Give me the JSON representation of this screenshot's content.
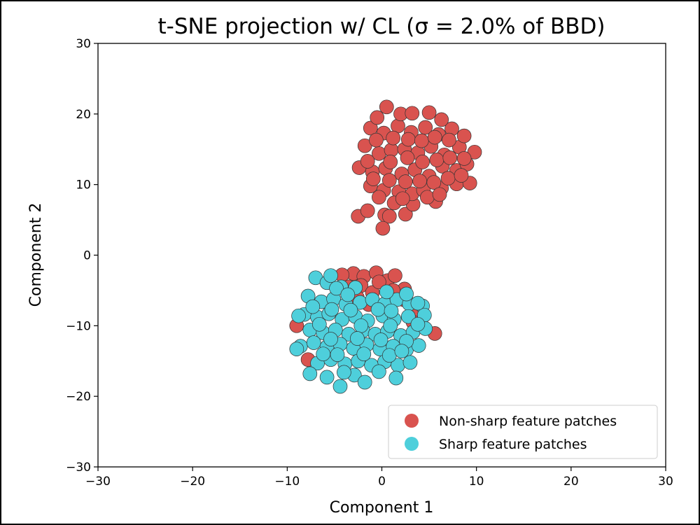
{
  "chart_data": {
    "type": "scatter",
    "title": "t-SNE projection w/ CL (σ = 2.0% of BBD)",
    "xlabel": "Component 1",
    "ylabel": "Component 2",
    "xlim": [
      -30,
      30
    ],
    "ylim": [
      -30,
      30
    ],
    "xticks": [
      -30,
      -20,
      -10,
      0,
      10,
      20,
      30
    ],
    "yticks": [
      -30,
      -20,
      -10,
      0,
      10,
      20,
      30
    ],
    "xtick_labels": [
      "−30",
      "−20",
      "−10",
      "0",
      "10",
      "20",
      "30"
    ],
    "ytick_labels": [
      "−30",
      "−20",
      "−10",
      "0",
      "10",
      "20",
      "30"
    ],
    "grid": false,
    "legend_position": "lower-right",
    "series": [
      {
        "name": "Non-sharp feature patches",
        "color": "#d9534f",
        "points": [
          [
            -2.5,
            5.5
          ],
          [
            -1.5,
            6.3
          ],
          [
            0.3,
            5.7
          ],
          [
            0.8,
            5.5
          ],
          [
            0.1,
            3.8
          ],
          [
            2.5,
            5.8
          ],
          [
            3.3,
            7.2
          ],
          [
            5.7,
            7.6
          ],
          [
            -1.2,
            9.8
          ],
          [
            0.2,
            9.2
          ],
          [
            1.8,
            9
          ],
          [
            3.2,
            8.7
          ],
          [
            4.4,
            9.2
          ],
          [
            6.3,
            9.5
          ],
          [
            7.9,
            10.1
          ],
          [
            9.3,
            10.2
          ],
          [
            -2.4,
            12.4
          ],
          [
            -1,
            11.8
          ],
          [
            0.4,
            12.3
          ],
          [
            2.1,
            11.5
          ],
          [
            3.5,
            12.1
          ],
          [
            5,
            11.2
          ],
          [
            6.4,
            12.6
          ],
          [
            7.9,
            12
          ],
          [
            9,
            12.9
          ],
          [
            -1.8,
            15.5
          ],
          [
            -0.3,
            14.4
          ],
          [
            1,
            14.9
          ],
          [
            2.4,
            15
          ],
          [
            3.8,
            14.5
          ],
          [
            5.2,
            15.4
          ],
          [
            6.6,
            14.2
          ],
          [
            8.2,
            15.3
          ],
          [
            9.8,
            14.6
          ],
          [
            -1.2,
            18
          ],
          [
            0.2,
            17.3
          ],
          [
            1.7,
            18.3
          ],
          [
            3.1,
            17.4
          ],
          [
            4.6,
            18.1
          ],
          [
            6,
            17.1
          ],
          [
            7.4,
            17.9
          ],
          [
            8.7,
            16.9
          ],
          [
            -0.5,
            19.5
          ],
          [
            0.5,
            21
          ],
          [
            2,
            20
          ],
          [
            3.2,
            20.1
          ],
          [
            5,
            20.2
          ],
          [
            6.3,
            19.2
          ],
          [
            -1.5,
            13.3
          ],
          [
            0.9,
            13.2
          ],
          [
            2.7,
            13.8
          ],
          [
            4.3,
            13.2
          ],
          [
            5.8,
            13.5
          ],
          [
            7.2,
            13.8
          ],
          [
            8.7,
            13.7
          ],
          [
            -0.6,
            16.3
          ],
          [
            1.2,
            16.6
          ],
          [
            2.8,
            16.4
          ],
          [
            4.2,
            16.2
          ],
          [
            5.6,
            16.7
          ],
          [
            7.1,
            16.3
          ],
          [
            -0.9,
            10.8
          ],
          [
            0.8,
            10.6
          ],
          [
            2.5,
            10.4
          ],
          [
            4,
            10.5
          ],
          [
            5.5,
            10.3
          ],
          [
            7,
            10.9
          ],
          [
            8.4,
            11.3
          ],
          [
            1.3,
            7.4
          ],
          [
            2.2,
            8
          ],
          [
            4.8,
            8.2
          ],
          [
            6.1,
            8.6
          ],
          [
            -0.3,
            8.2
          ],
          [
            -3,
            -2.6
          ],
          [
            -1.9,
            -3
          ],
          [
            -0.6,
            -2.5
          ],
          [
            0.6,
            -3.6
          ],
          [
            1.4,
            -2.9
          ],
          [
            2.4,
            -4.8
          ],
          [
            -4.2,
            -2.8
          ],
          [
            -3.5,
            -4.5
          ],
          [
            -2.2,
            -4.3
          ],
          [
            -1,
            -5.3
          ],
          [
            -0.3,
            -3.8
          ],
          [
            -1.4,
            -7
          ],
          [
            -2.6,
            -6
          ],
          [
            3.4,
            -8
          ],
          [
            3.3,
            -9.5
          ],
          [
            5.6,
            -11.1
          ],
          [
            -9,
            -10
          ],
          [
            -7.8,
            -14.8
          ],
          [
            1.2,
            -5
          ],
          [
            2.3,
            -6.3
          ]
        ]
      },
      {
        "name": "Sharp feature patches",
        "color": "#4ecfdb",
        "points": [
          [
            -7,
            -3.2
          ],
          [
            -5.8,
            -3.9
          ],
          [
            -4.3,
            -4.5
          ],
          [
            -2.8,
            -4.6
          ],
          [
            -5.4,
            -2.9
          ],
          [
            -7.8,
            -5.8
          ],
          [
            -6.4,
            -6.6
          ],
          [
            -5.1,
            -6.2
          ],
          [
            -3.8,
            -7
          ],
          [
            -2.3,
            -6.7
          ],
          [
            -1,
            -6.3
          ],
          [
            0.3,
            -6.9
          ],
          [
            1.6,
            -6.3
          ],
          [
            2.9,
            -6.9
          ],
          [
            -8.2,
            -8.4
          ],
          [
            -6.8,
            -8.8
          ],
          [
            -5.6,
            -8.3
          ],
          [
            -4.2,
            -9.1
          ],
          [
            -2.8,
            -8.7
          ],
          [
            -1.5,
            -9.3
          ],
          [
            0.1,
            -8.6
          ],
          [
            1.3,
            -9.1
          ],
          [
            2.8,
            -8.7
          ],
          [
            4.3,
            -7.2
          ],
          [
            4.5,
            -8.5
          ],
          [
            -7.6,
            -10.6
          ],
          [
            -6.2,
            -11
          ],
          [
            -4.9,
            -10.6
          ],
          [
            -3.5,
            -11.2
          ],
          [
            -2,
            -10.7
          ],
          [
            -0.7,
            -11.2
          ],
          [
            0.6,
            -10.8
          ],
          [
            2,
            -11.4
          ],
          [
            3.3,
            -10.9
          ],
          [
            4.6,
            -10.4
          ],
          [
            -8.6,
            -12.9
          ],
          [
            -7.2,
            -12.4
          ],
          [
            -5.8,
            -13
          ],
          [
            -4.4,
            -12.6
          ],
          [
            -3,
            -13.2
          ],
          [
            -1.6,
            -12.7
          ],
          [
            -0.2,
            -13.3
          ],
          [
            1.2,
            -12.9
          ],
          [
            2.6,
            -13.4
          ],
          [
            3.9,
            -12.8
          ],
          [
            -6.8,
            -15.3
          ],
          [
            -5.4,
            -14.8
          ],
          [
            -3.9,
            -15.4
          ],
          [
            -2.5,
            -15
          ],
          [
            -1.1,
            -15.6
          ],
          [
            0.3,
            -15.1
          ],
          [
            1.7,
            -15.6
          ],
          [
            3,
            -15.2
          ],
          [
            -7.6,
            -16.8
          ],
          [
            -5.8,
            -17.3
          ],
          [
            -4.4,
            -18.6
          ],
          [
            -2.9,
            -17
          ],
          [
            -1.8,
            -18
          ],
          [
            -0.3,
            -16.5
          ],
          [
            1.5,
            -17.4
          ],
          [
            -3.3,
            -7.8
          ],
          [
            -0.4,
            -7.7
          ],
          [
            1,
            -7.9
          ],
          [
            -6.6,
            -9.8
          ],
          [
            -2.2,
            -10
          ],
          [
            0.9,
            -10
          ],
          [
            3.8,
            -9.8
          ],
          [
            -5.4,
            -11.9
          ],
          [
            -2.6,
            -11.8
          ],
          [
            -0.1,
            -12
          ],
          [
            2.6,
            -12.2
          ],
          [
            -4.7,
            -14.1
          ],
          [
            -1.9,
            -14
          ],
          [
            0.8,
            -14.2
          ],
          [
            -8.8,
            -8.6
          ],
          [
            -9,
            -13.3
          ],
          [
            -4.8,
            -4.7
          ],
          [
            -3.6,
            -5.6
          ],
          [
            0.5,
            -5.2
          ],
          [
            2.6,
            -5.5
          ],
          [
            3.8,
            -6.8
          ],
          [
            -4,
            -16.6
          ],
          [
            -6.2,
            -14
          ],
          [
            2.1,
            -13.6
          ],
          [
            -7.3,
            -7.3
          ],
          [
            -5.3,
            -7.7
          ]
        ]
      }
    ]
  }
}
